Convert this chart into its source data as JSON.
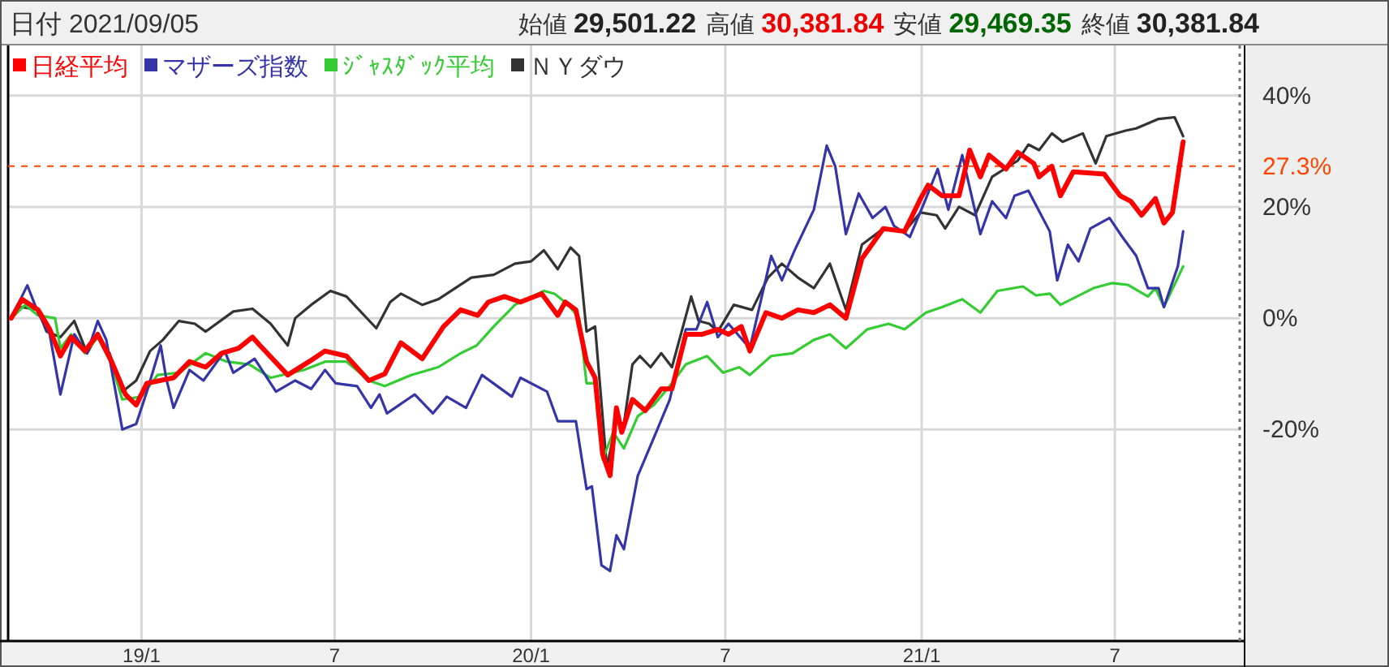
{
  "chart_data": {
    "type": "line",
    "annotations": [
      "日付 2021/09/05",
      "始値",
      "29,501.22",
      "高値",
      "30,381.84",
      "安値",
      "29,469.35",
      "終値",
      "30,381.84"
    ],
    "xlim": [
      "2018-08-29",
      "2021-10-26"
    ],
    "xticks": [
      {
        "value": "2019-01-01",
        "label": "19/1"
      },
      {
        "value": "2019-07-01",
        "label": "7"
      },
      {
        "value": "2020-01-01",
        "label": "20/1"
      },
      {
        "value": "2020-07-01",
        "label": "7"
      },
      {
        "value": "2021-01-01",
        "label": "21/1"
      },
      {
        "value": "2021-07-01",
        "label": "7"
      }
    ],
    "ylim": [
      -58,
      49
    ],
    "yticks": [
      {
        "value": -20,
        "label": "-20%"
      },
      {
        "value": 0,
        "label": "0%"
      },
      {
        "value": 20,
        "label": "20%"
      },
      {
        "value": 40,
        "label": "40%"
      }
    ],
    "grid": true,
    "legend": "top left",
    "line_style": "solid",
    "ref_lines": [
      {
        "axis": "y",
        "value": 27.3,
        "label": "27.3%",
        "color": "#ff4500",
        "line_style": "dashed"
      }
    ],
    "series": [
      {
        "name": "日経平均",
        "color": "#ff0000",
        "x": [
          "2018-09-01",
          "2018-09-11",
          "2018-09-26",
          "2018-10-07",
          "2018-10-17",
          "2018-10-27",
          "2018-11-09",
          "2018-11-21",
          "2018-12-04",
          "2018-12-17",
          "2018-12-27",
          "2019-01-06",
          "2019-01-31",
          "2019-02-15",
          "2019-03-02",
          "2019-03-17",
          "2019-04-02",
          "2019-04-15",
          "2019-04-22",
          "2019-05-18",
          "2019-06-07",
          "2019-06-22",
          "2019-07-12",
          "2019-08-02",
          "2019-08-17",
          "2019-09-01",
          "2019-09-21",
          "2019-10-11",
          "2019-10-27",
          "2019-11-12",
          "2019-11-22",
          "2019-12-07",
          "2019-12-22",
          "2020-01-11",
          "2020-01-26",
          "2020-02-02",
          "2020-02-12",
          "2020-02-22",
          "2020-03-01",
          "2020-03-08",
          "2020-03-15",
          "2020-03-21",
          "2020-03-26",
          "2020-04-05",
          "2020-04-17",
          "2020-05-02",
          "2020-05-12",
          "2020-05-25",
          "2020-06-09",
          "2020-06-24",
          "2020-07-04",
          "2020-07-16",
          "2020-07-24",
          "2020-08-08",
          "2020-08-23",
          "2020-09-07",
          "2020-09-22",
          "2020-10-07",
          "2020-10-22",
          "2020-11-06",
          "2020-11-26",
          "2020-12-16",
          "2020-12-31",
          "2021-01-07",
          "2021-01-20",
          "2021-02-05",
          "2021-02-15",
          "2021-02-25",
          "2021-03-05",
          "2021-03-21",
          "2021-04-01",
          "2021-04-16",
          "2021-04-21",
          "2021-05-03",
          "2021-05-11",
          "2021-05-23",
          "2021-06-21",
          "2021-07-06",
          "2021-07-16",
          "2021-07-26",
          "2021-08-08",
          "2021-08-16",
          "2021-08-24",
          "2021-09-03"
        ],
        "values": [
          0,
          3.4,
          1.5,
          -2,
          -6.8,
          -3.4,
          -5.9,
          -2.9,
          -7.8,
          -13.7,
          -15.6,
          -11.7,
          -10.7,
          -7.8,
          -8.8,
          -6.3,
          -5.4,
          -3.4,
          -4.9,
          -10.2,
          -7.8,
          -5.9,
          -6.8,
          -11.2,
          -10,
          -4.4,
          -7.3,
          -1.5,
          1.5,
          0.5,
          2.9,
          3.9,
          2.9,
          4.4,
          0.5,
          2.9,
          1.5,
          -7.8,
          -10.7,
          -24.4,
          -28.3,
          -16.1,
          -20.5,
          -14.6,
          -16.6,
          -12.7,
          -12.7,
          -2.9,
          -2.9,
          -2,
          -2.9,
          -1.5,
          -5.9,
          1,
          0,
          1.5,
          1,
          2.4,
          0,
          10.7,
          16.1,
          15.6,
          21.5,
          23.9,
          22,
          22,
          30.2,
          25.4,
          29.3,
          26.8,
          29.8,
          27.8,
          25.4,
          27.3,
          22,
          26.3,
          25.9,
          22,
          21,
          18.5,
          21.5,
          17.1,
          19,
          31.7
        ]
      },
      {
        "name": "マザーズ指数",
        "color": "#3535a8",
        "x": [
          "2018-09-01",
          "2018-09-16",
          "2018-09-26",
          "2018-10-07",
          "2018-10-17",
          "2018-10-30",
          "2018-11-11",
          "2018-11-21",
          "2018-11-29",
          "2018-12-14",
          "2018-12-27",
          "2019-01-06",
          "2019-01-19",
          "2019-01-24",
          "2019-01-31",
          "2019-02-15",
          "2019-02-28",
          "2019-03-20",
          "2019-03-28",
          "2019-04-17",
          "2019-05-07",
          "2019-05-25",
          "2019-06-09",
          "2019-06-22",
          "2019-07-02",
          "2019-07-22",
          "2019-08-04",
          "2019-08-12",
          "2019-08-19",
          "2019-09-14",
          "2019-10-01",
          "2019-10-14",
          "2019-11-01",
          "2019-11-16",
          "2019-12-14",
          "2019-12-22",
          "2020-01-16",
          "2020-01-26",
          "2020-02-12",
          "2020-02-22",
          "2020-02-27",
          "2020-03-07",
          "2020-03-15",
          "2020-03-21",
          "2020-03-28",
          "2020-04-10",
          "2020-04-25",
          "2020-05-10",
          "2020-05-25",
          "2020-06-04",
          "2020-06-14",
          "2020-06-24",
          "2020-07-04",
          "2020-07-24",
          "2020-08-13",
          "2020-08-23",
          "2020-09-04",
          "2020-09-22",
          "2020-10-04",
          "2020-10-12",
          "2020-10-22",
          "2020-11-03",
          "2020-11-16",
          "2020-11-28",
          "2020-12-06",
          "2020-12-21",
          "2021-01-05",
          "2021-01-16",
          "2021-01-26",
          "2021-02-08",
          "2021-02-25",
          "2021-03-08",
          "2021-03-21",
          "2021-03-29",
          "2021-04-11",
          "2021-05-01",
          "2021-05-08",
          "2021-05-18",
          "2021-05-28",
          "2021-06-08",
          "2021-06-26",
          "2021-07-08",
          "2021-07-21",
          "2021-08-01",
          "2021-08-11",
          "2021-08-16",
          "2021-08-29",
          "2021-09-03"
        ],
        "values": [
          0,
          5.9,
          1,
          -2.9,
          -13.7,
          -2.9,
          -6.3,
          -0.5,
          -3.9,
          -20,
          -19,
          -13.2,
          -4.9,
          -10.7,
          -16.1,
          -9.3,
          -11.2,
          -5.9,
          -9.8,
          -7.3,
          -13.2,
          -11.2,
          -12.7,
          -9.3,
          -11.7,
          -12.2,
          -16.1,
          -13.7,
          -17.1,
          -13.7,
          -17.1,
          -14.1,
          -16.1,
          -10.2,
          -14.1,
          -10.7,
          -13.2,
          -18.5,
          -18.5,
          -30.7,
          -30.2,
          -44.4,
          -45.4,
          -39,
          -41.5,
          -28.3,
          -21.5,
          -14.6,
          -2,
          -2,
          2.9,
          -3.4,
          -1,
          -5.4,
          11.2,
          6.8,
          12.2,
          19.5,
          31,
          27.3,
          15.1,
          22.4,
          18,
          20,
          16.6,
          14.6,
          21.5,
          26.8,
          19.5,
          29.3,
          15.1,
          21,
          18,
          22,
          22.9,
          15.6,
          6.8,
          13.2,
          10.2,
          16.1,
          18,
          14.6,
          11.2,
          5.4,
          5.4,
          2,
          9.3,
          15.6
        ]
      },
      {
        "name": "ｼﾞｬｽﾀﾞｯｸ平均",
        "color": "#33cc33",
        "x": [
          "2018-09-01",
          "2018-09-14",
          "2018-09-26",
          "2018-10-12",
          "2018-10-17",
          "2018-10-27",
          "2018-11-09",
          "2018-11-21",
          "2018-12-04",
          "2018-12-14",
          "2019-01-01",
          "2019-01-16",
          "2019-02-05",
          "2019-03-02",
          "2019-03-22",
          "2019-04-12",
          "2019-05-02",
          "2019-06-02",
          "2019-06-22",
          "2019-07-12",
          "2019-08-02",
          "2019-08-17",
          "2019-09-11",
          "2019-10-06",
          "2019-10-27",
          "2019-11-11",
          "2019-11-27",
          "2019-12-17",
          "2020-01-13",
          "2020-01-23",
          "2020-02-05",
          "2020-02-15",
          "2020-02-22",
          "2020-03-01",
          "2020-03-08",
          "2020-03-18",
          "2020-03-28",
          "2020-04-10",
          "2020-04-25",
          "2020-05-12",
          "2020-05-25",
          "2020-06-14",
          "2020-06-29",
          "2020-07-14",
          "2020-07-24",
          "2020-08-13",
          "2020-09-02",
          "2020-09-22",
          "2020-10-07",
          "2020-10-22",
          "2020-11-11",
          "2020-12-01",
          "2020-12-16",
          "2021-01-05",
          "2021-01-20",
          "2021-02-08",
          "2021-02-25",
          "2021-03-13",
          "2021-04-06",
          "2021-04-18",
          "2021-05-01",
          "2021-05-11",
          "2021-06-11",
          "2021-06-28",
          "2021-07-13",
          "2021-08-01",
          "2021-08-08",
          "2021-08-16",
          "2021-09-03"
        ],
        "values": [
          0,
          2.4,
          0.5,
          0,
          -5.4,
          -2.9,
          -6.3,
          -3.4,
          -8.3,
          -14.6,
          -14.1,
          -10.2,
          -9.8,
          -6.3,
          -7.8,
          -8.3,
          -10.7,
          -9.3,
          -7.8,
          -7.8,
          -11.2,
          -12.2,
          -10.2,
          -8.8,
          -6.3,
          -4.9,
          -1.5,
          2.4,
          4.9,
          4.4,
          2.4,
          0,
          -11.7,
          -11.7,
          -25.4,
          -20.5,
          -23.4,
          -17.6,
          -15.6,
          -11.7,
          -8.3,
          -6.8,
          -9.8,
          -8.8,
          -10.2,
          -6.8,
          -6.3,
          -3.9,
          -2.9,
          -5.4,
          -2,
          -1,
          -2,
          1,
          2,
          3.4,
          1,
          4.9,
          5.7,
          4.1,
          4.4,
          2.4,
          5.4,
          6.3,
          6,
          3.9,
          5.4,
          2,
          9.3
        ]
      },
      {
        "name": "ＮＹダウ",
        "color": "#333333",
        "x": [
          "2018-09-01",
          "2018-09-11",
          "2018-09-26",
          "2018-10-04",
          "2018-10-17",
          "2018-10-30",
          "2018-11-11",
          "2018-11-21",
          "2018-12-02",
          "2018-12-14",
          "2018-12-27",
          "2019-01-09",
          "2019-01-21",
          "2019-02-05",
          "2019-02-20",
          "2019-03-02",
          "2019-03-28",
          "2019-04-15",
          "2019-05-02",
          "2019-05-18",
          "2019-05-25",
          "2019-06-09",
          "2019-06-27",
          "2019-07-12",
          "2019-08-09",
          "2019-08-22",
          "2019-09-01",
          "2019-09-21",
          "2019-10-06",
          "2019-11-06",
          "2019-11-27",
          "2019-12-17",
          "2020-01-01",
          "2020-01-13",
          "2020-01-26",
          "2020-02-07",
          "2020-02-15",
          "2020-02-22",
          "2020-03-01",
          "2020-03-12",
          "2020-03-21",
          "2020-03-28",
          "2020-04-05",
          "2020-04-12",
          "2020-04-22",
          "2020-05-02",
          "2020-05-12",
          "2020-05-30",
          "2020-06-06",
          "2020-06-16",
          "2020-06-24",
          "2020-07-09",
          "2020-07-26",
          "2020-08-10",
          "2020-08-23",
          "2020-09-07",
          "2020-09-22",
          "2020-10-07",
          "2020-10-22",
          "2020-11-06",
          "2020-11-26",
          "2020-12-16",
          "2020-12-31",
          "2021-01-15",
          "2021-01-23",
          "2021-02-05",
          "2021-02-20",
          "2021-03-08",
          "2021-04-01",
          "2021-04-11",
          "2021-04-21",
          "2021-05-03",
          "2021-05-13",
          "2021-06-01",
          "2021-06-13",
          "2021-06-23",
          "2021-07-11",
          "2021-07-21",
          "2021-08-11",
          "2021-08-26",
          "2021-09-03"
        ],
        "values": [
          0,
          2,
          1.5,
          -2.4,
          -3.4,
          -0.5,
          -6.3,
          -2.9,
          -6.3,
          -13.2,
          -11.2,
          -5.9,
          -3.9,
          -0.5,
          -1,
          -2.4,
          1.2,
          1.7,
          -1,
          -4.9,
          0,
          2.4,
          4.9,
          3.9,
          -1.8,
          2.9,
          4.4,
          2.4,
          3.4,
          7.3,
          7.8,
          9.8,
          10.2,
          12.2,
          8.8,
          12.7,
          11.2,
          -2.4,
          -1.5,
          -26.8,
          -18.5,
          -19,
          -8.3,
          -6.8,
          -8.8,
          -6.3,
          -8.8,
          3.9,
          -0.5,
          -1,
          -2.4,
          2.4,
          1.5,
          7.3,
          9.8,
          7.3,
          5.4,
          9.8,
          1.5,
          13.2,
          16.1,
          15.6,
          19,
          18.5,
          16.1,
          20,
          18.5,
          25.4,
          28.3,
          31.2,
          30.2,
          33.2,
          31.7,
          33.2,
          27.8,
          32.7,
          33.7,
          34.1,
          35.8,
          36.1,
          32.7
        ]
      }
    ]
  }
}
